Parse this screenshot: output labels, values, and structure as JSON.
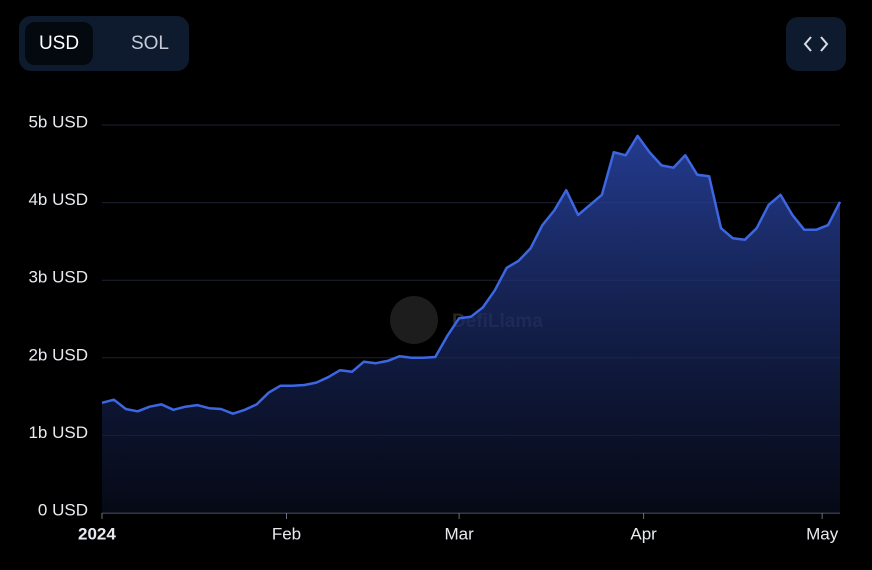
{
  "toggle": [
    "USD",
    "SOL"
  ],
  "watermark": "DefiLlama",
  "chart_data": {
    "type": "area",
    "x": [
      0,
      2,
      4,
      6,
      8,
      10,
      12,
      14,
      16,
      18,
      20,
      22,
      24,
      26,
      28,
      30,
      32,
      34,
      36,
      38,
      40,
      42,
      44,
      46,
      48,
      50,
      52,
      54,
      56,
      58,
      60,
      62,
      64,
      66,
      68,
      70,
      72,
      74,
      76,
      78,
      80,
      82,
      84,
      86,
      88,
      90,
      92,
      94,
      96,
      98,
      100,
      102,
      104,
      106,
      108,
      110,
      112,
      114,
      116,
      118,
      120,
      122,
      124
    ],
    "values": [
      1.42,
      1.46,
      1.34,
      1.31,
      1.37,
      1.4,
      1.33,
      1.37,
      1.39,
      1.35,
      1.34,
      1.28,
      1.33,
      1.4,
      1.55,
      1.64,
      1.64,
      1.65,
      1.68,
      1.75,
      1.84,
      1.82,
      1.95,
      1.93,
      1.96,
      2.02,
      2.0,
      2.0,
      2.01,
      2.28,
      2.51,
      2.53,
      2.65,
      2.87,
      3.16,
      3.25,
      3.41,
      3.71,
      3.9,
      4.16,
      3.84,
      3.97,
      4.1,
      4.65,
      4.61,
      4.86,
      4.65,
      4.48,
      4.45,
      4.61,
      4.36,
      4.34,
      3.67,
      3.54,
      3.52,
      3.67,
      3.97,
      4.1,
      3.84,
      3.65,
      3.65,
      3.71,
      4.01
    ],
    "color": "#3d66e3",
    "xlim": [
      0,
      124
    ],
    "xticks": [
      {
        "value": 0,
        "label": "2024"
      },
      {
        "value": 31,
        "label": "Feb"
      },
      {
        "value": 60,
        "label": "Mar"
      },
      {
        "value": 91,
        "label": "Apr"
      },
      {
        "value": 121,
        "label": "May"
      }
    ],
    "ylim": [
      0,
      5
    ],
    "yticks": [
      {
        "value": 0,
        "label": "0 USD"
      },
      {
        "value": 1,
        "label": "1b USD"
      },
      {
        "value": 2,
        "label": "2b USD"
      },
      {
        "value": 3,
        "label": "3b USD"
      },
      {
        "value": 4,
        "label": "4b USD"
      },
      {
        "value": 5,
        "label": "5b USD"
      }
    ],
    "grid": true
  }
}
